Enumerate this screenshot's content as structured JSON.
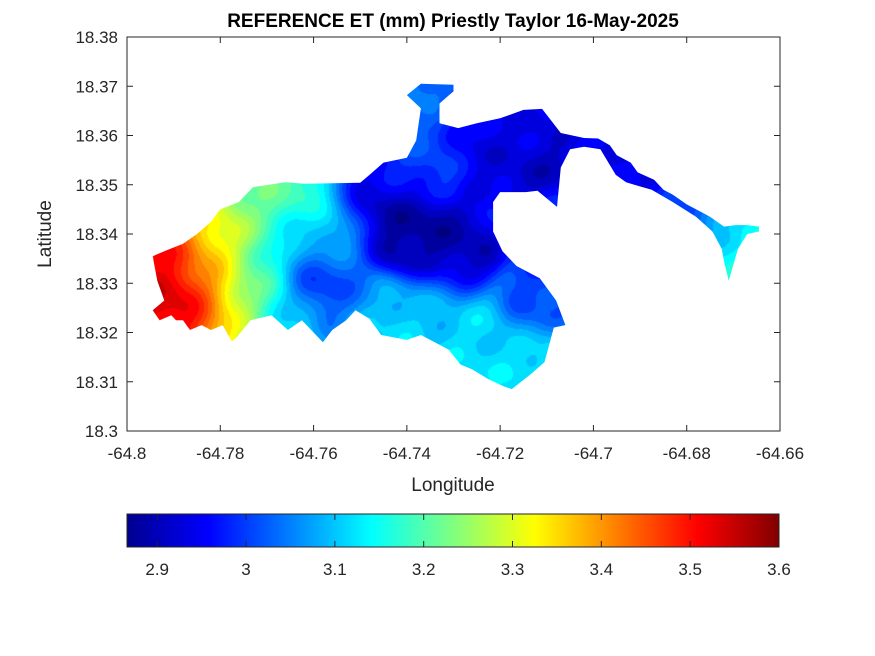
{
  "chart_data": {
    "type": "heatmap",
    "title": "REFERENCE ET (mm) Priestly Taylor 16-May-2025",
    "xlabel": "Longitude",
    "ylabel": "Latitude",
    "xlim": [
      -64.8,
      -64.66
    ],
    "ylim": [
      18.3,
      18.38
    ],
    "x_ticks": [
      -64.8,
      -64.78,
      -64.76,
      -64.74,
      -64.72,
      -64.7,
      -64.68,
      -64.66
    ],
    "x_tick_labels": [
      "-64.8",
      "-64.78",
      "-64.76",
      "-64.74",
      "-64.72",
      "-64.7",
      "-64.68",
      "-64.66"
    ],
    "y_ticks": [
      18.3,
      18.31,
      18.32,
      18.33,
      18.34,
      18.35,
      18.36,
      18.37,
      18.38
    ],
    "y_tick_labels": [
      "18.3",
      "18.31",
      "18.32",
      "18.33",
      "18.34",
      "18.35",
      "18.36",
      "18.37",
      "18.38"
    ],
    "grid": false,
    "colormap": "jet",
    "colorbar": {
      "orientation": "horizontal",
      "location": "below",
      "range": [
        2.866,
        3.6
      ],
      "ticks": [
        2.9,
        3.0,
        3.1,
        3.2,
        3.3,
        3.4,
        3.5,
        3.6
      ],
      "tick_labels": [
        "2.9",
        "3",
        "3.1",
        "3.2",
        "3.3",
        "3.4",
        "3.5",
        "3.6"
      ]
    },
    "field": {
      "description_type": "gaussian-blend",
      "base_value": 3.06,
      "anchors": [
        {
          "lon": -64.789,
          "lat": 18.327,
          "value": 3.58
        },
        {
          "lon": -64.792,
          "lat": 18.336,
          "value": 3.52
        },
        {
          "lon": -64.786,
          "lat": 18.324,
          "value": 3.5
        },
        {
          "lon": -64.783,
          "lat": 18.334,
          "value": 3.38
        },
        {
          "lon": -64.781,
          "lat": 18.343,
          "value": 3.33
        },
        {
          "lon": -64.778,
          "lat": 18.325,
          "value": 3.3
        },
        {
          "lon": -64.773,
          "lat": 18.347,
          "value": 3.22
        },
        {
          "lon": -64.772,
          "lat": 18.333,
          "value": 3.2
        },
        {
          "lon": -64.767,
          "lat": 18.349,
          "value": 3.2
        },
        {
          "lon": -64.766,
          "lat": 18.322,
          "value": 3.12
        },
        {
          "lon": -64.762,
          "lat": 18.338,
          "value": 3.08
        },
        {
          "lon": -64.758,
          "lat": 18.331,
          "value": 2.95
        },
        {
          "lon": -64.755,
          "lat": 18.341,
          "value": 3.17
        },
        {
          "lon": -64.748,
          "lat": 18.344,
          "value": 2.9
        },
        {
          "lon": -64.743,
          "lat": 18.343,
          "value": 2.88
        },
        {
          "lon": -64.738,
          "lat": 18.339,
          "value": 2.88
        },
        {
          "lon": -64.731,
          "lat": 18.335,
          "value": 2.9
        },
        {
          "lon": -64.752,
          "lat": 18.327,
          "value": 3.05
        },
        {
          "lon": -64.742,
          "lat": 18.353,
          "value": 2.98
        },
        {
          "lon": -64.735,
          "lat": 18.356,
          "value": 3.02
        },
        {
          "lon": -64.725,
          "lat": 18.357,
          "value": 2.93
        },
        {
          "lon": -64.711,
          "lat": 18.355,
          "value": 2.9
        },
        {
          "lon": -64.715,
          "lat": 18.36,
          "value": 2.95
        },
        {
          "lon": -64.745,
          "lat": 18.365,
          "value": 3.05
        },
        {
          "lon": -64.735,
          "lat": 18.326,
          "value": 3.1
        },
        {
          "lon": -64.745,
          "lat": 18.322,
          "value": 3.12
        },
        {
          "lon": -64.725,
          "lat": 18.32,
          "value": 3.12
        },
        {
          "lon": -64.712,
          "lat": 18.325,
          "value": 3.0
        },
        {
          "lon": -64.715,
          "lat": 18.314,
          "value": 3.12
        },
        {
          "lon": -64.708,
          "lat": 18.314,
          "value": 3.15
        },
        {
          "lon": -64.7,
          "lat": 18.359,
          "value": 2.96
        },
        {
          "lon": -64.692,
          "lat": 18.352,
          "value": 2.94
        },
        {
          "lon": -64.678,
          "lat": 18.345,
          "value": 3.0
        },
        {
          "lon": -64.67,
          "lat": 18.34,
          "value": 3.12
        },
        {
          "lon": -64.668,
          "lat": 18.336,
          "value": 3.16
        },
        {
          "lon": -64.708,
          "lat": 18.343,
          "value": 2.97
        }
      ]
    },
    "land_mask_lonlat": [
      [
        -64.792,
        18.3365
      ],
      [
        -64.788,
        18.338
      ],
      [
        -64.785,
        18.34
      ],
      [
        -64.782,
        18.3425
      ],
      [
        -64.78,
        18.345
      ],
      [
        -64.776,
        18.3465
      ],
      [
        -64.773,
        18.3495
      ],
      [
        -64.766,
        18.3505
      ],
      [
        -64.762,
        18.3502
      ],
      [
        -64.75,
        18.3504
      ],
      [
        -64.748,
        18.352
      ],
      [
        -64.745,
        18.3545
      ],
      [
        -64.74,
        18.3555
      ],
      [
        -64.738,
        18.359
      ],
      [
        -64.737,
        18.3655
      ],
      [
        -64.74,
        18.3682
      ],
      [
        -64.737,
        18.3705
      ],
      [
        -64.73,
        18.3703
      ],
      [
        -64.73,
        18.369
      ],
      [
        -64.733,
        18.3665
      ],
      [
        -64.733,
        18.3625
      ],
      [
        -64.729,
        18.3615
      ],
      [
        -64.725,
        18.3625
      ],
      [
        -64.72,
        18.3635
      ],
      [
        -64.715,
        18.3652
      ],
      [
        -64.711,
        18.3654
      ],
      [
        -64.707,
        18.3605
      ],
      [
        -64.702,
        18.3595
      ],
      [
        -64.699,
        18.3594
      ],
      [
        -64.6965,
        18.358
      ],
      [
        -64.695,
        18.356
      ],
      [
        -64.692,
        18.3545
      ],
      [
        -64.6905,
        18.3525
      ],
      [
        -64.687,
        18.351
      ],
      [
        -64.685,
        18.349
      ],
      [
        -64.683,
        18.348
      ],
      [
        -64.68,
        18.346
      ],
      [
        -64.677,
        18.3445
      ],
      [
        -64.675,
        18.3435
      ],
      [
        -64.672,
        18.3415
      ],
      [
        -64.6695,
        18.3418
      ],
      [
        -64.667,
        18.3418
      ],
      [
        -64.6645,
        18.3415
      ],
      [
        -64.6645,
        18.3405
      ],
      [
        -64.667,
        18.34
      ],
      [
        -64.669,
        18.337
      ],
      [
        -64.671,
        18.3305
      ],
      [
        -64.672,
        18.3345
      ],
      [
        -64.6725,
        18.337
      ],
      [
        -64.6745,
        18.3405
      ],
      [
        -64.678,
        18.3435
      ],
      [
        -64.683,
        18.3465
      ],
      [
        -64.6875,
        18.349
      ],
      [
        -64.6905,
        18.3498
      ],
      [
        -64.693,
        18.3505
      ],
      [
        -64.6952,
        18.352
      ],
      [
        -64.6968,
        18.3545
      ],
      [
        -64.6985,
        18.3572
      ],
      [
        -64.702,
        18.3577
      ],
      [
        -64.705,
        18.3572
      ],
      [
        -64.707,
        18.3535
      ],
      [
        -64.7078,
        18.3455
      ],
      [
        -64.712,
        18.3488
      ],
      [
        -64.7145,
        18.3485
      ],
      [
        -64.72,
        18.3485
      ],
      [
        -64.7215,
        18.3465
      ],
      [
        -64.7215,
        18.3405
      ],
      [
        -64.7195,
        18.3365
      ],
      [
        -64.7165,
        18.3335
      ],
      [
        -64.7115,
        18.331
      ],
      [
        -64.708,
        18.3265
      ],
      [
        -64.706,
        18.3215
      ],
      [
        -64.7085,
        18.321
      ],
      [
        -64.7105,
        18.314
      ],
      [
        -64.7135,
        18.3115
      ],
      [
        -64.7175,
        18.3085
      ],
      [
        -64.719,
        18.309
      ],
      [
        -64.7225,
        18.3105
      ],
      [
        -64.726,
        18.3125
      ],
      [
        -64.7285,
        18.3135
      ],
      [
        -64.731,
        18.3165
      ],
      [
        -64.734,
        18.318
      ],
      [
        -64.737,
        18.3195
      ],
      [
        -64.74,
        18.3185
      ],
      [
        -64.7455,
        18.3195
      ],
      [
        -64.748,
        18.3228
      ],
      [
        -64.751,
        18.3245
      ],
      [
        -64.753,
        18.3225
      ],
      [
        -64.756,
        18.3205
      ],
      [
        -64.758,
        18.318
      ],
      [
        -64.76,
        18.32
      ],
      [
        -64.7625,
        18.3225
      ],
      [
        -64.7655,
        18.3205
      ],
      [
        -64.769,
        18.3235
      ],
      [
        -64.7735,
        18.3225
      ],
      [
        -64.7765,
        18.319
      ],
      [
        -64.7775,
        18.3182
      ],
      [
        -64.7795,
        18.3215
      ],
      [
        -64.782,
        18.3205
      ],
      [
        -64.784,
        18.3215
      ],
      [
        -64.7865,
        18.3205
      ],
      [
        -64.788,
        18.3225
      ],
      [
        -64.7895,
        18.3225
      ],
      [
        -64.7905,
        18.3235
      ],
      [
        -64.793,
        18.3225
      ],
      [
        -64.7945,
        18.3245
      ],
      [
        -64.792,
        18.3265
      ],
      [
        -64.7935,
        18.3305
      ],
      [
        -64.7945,
        18.3355
      ]
    ]
  }
}
